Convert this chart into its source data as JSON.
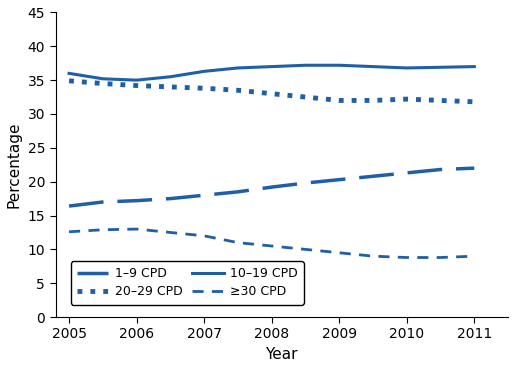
{
  "years": [
    2005,
    2005.5,
    2006,
    2006.5,
    2007,
    2007.5,
    2008,
    2008.5,
    2009,
    2009.5,
    2010,
    2010.5,
    2011
  ],
  "cpd_1_9": [
    16.4,
    17.0,
    17.2,
    17.5,
    18.0,
    18.5,
    19.2,
    19.8,
    20.3,
    20.8,
    21.3,
    21.8,
    22.0
  ],
  "cpd_10_19": [
    36.0,
    35.2,
    35.0,
    35.5,
    36.3,
    36.8,
    37.0,
    37.2,
    37.2,
    37.0,
    36.8,
    36.9,
    37.0
  ],
  "cpd_20_29": [
    34.9,
    34.5,
    34.2,
    34.0,
    33.8,
    33.5,
    33.0,
    32.5,
    32.0,
    32.0,
    32.2,
    32.0,
    31.8
  ],
  "cpd_30p": [
    12.6,
    12.9,
    13.0,
    12.5,
    12.0,
    11.0,
    10.5,
    10.0,
    9.5,
    9.0,
    8.8,
    8.8,
    9.0
  ],
  "line_color": "#1F5FA6",
  "xlabel": "Year",
  "ylabel": "Percentage",
  "ylim": [
    0,
    45
  ],
  "yticks": [
    0,
    5,
    10,
    15,
    20,
    25,
    30,
    35,
    40,
    45
  ],
  "xlim": [
    2004.8,
    2011.5
  ],
  "xticks": [
    2005,
    2006,
    2007,
    2008,
    2009,
    2010,
    2011
  ],
  "legend_labels": [
    "1–9 CPD",
    "10–19 CPD",
    "20–29 CPD",
    "≥30 CPD"
  ]
}
